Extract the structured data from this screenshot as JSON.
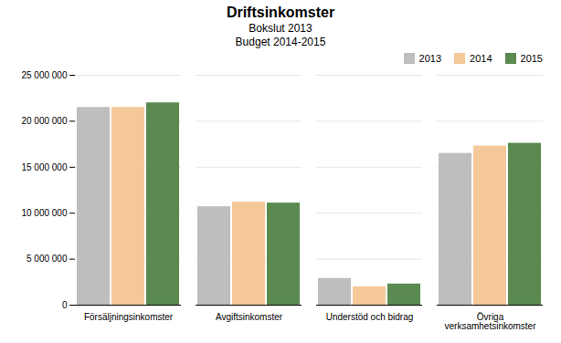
{
  "chart_data": {
    "type": "bar",
    "title": "Driftsinkomster",
    "subtitle": [
      "Bokslut 2013",
      "Budget 2014-2015"
    ],
    "categories": [
      "Försäljningsinkomster",
      "Avgiftsinkomster",
      "Understöd och bidrag",
      "Övriga\nverksamhetsinkomster"
    ],
    "series": [
      {
        "name": "2013",
        "color": "#bebebe",
        "values": [
          21500000,
          10700000,
          2900000,
          16500000
        ]
      },
      {
        "name": "2014",
        "color": "#f5c89a",
        "values": [
          21500000,
          11200000,
          2000000,
          17300000
        ]
      },
      {
        "name": "2015",
        "color": "#5a8a50",
        "values": [
          22000000,
          11100000,
          2300000,
          17600000
        ]
      }
    ],
    "ylim": [
      0,
      25000000
    ],
    "yticks": [
      0,
      {
        "value": 5000000,
        "label": "5 000 000"
      },
      {
        "value": 10000000,
        "label": "10 000 000"
      },
      {
        "value": 15000000,
        "label": "15 000 000"
      },
      {
        "value": 20000000,
        "label": "20 000 000"
      },
      {
        "value": 25000000,
        "label": "25 000 000"
      }
    ],
    "grid": true,
    "legend": "upper right"
  }
}
